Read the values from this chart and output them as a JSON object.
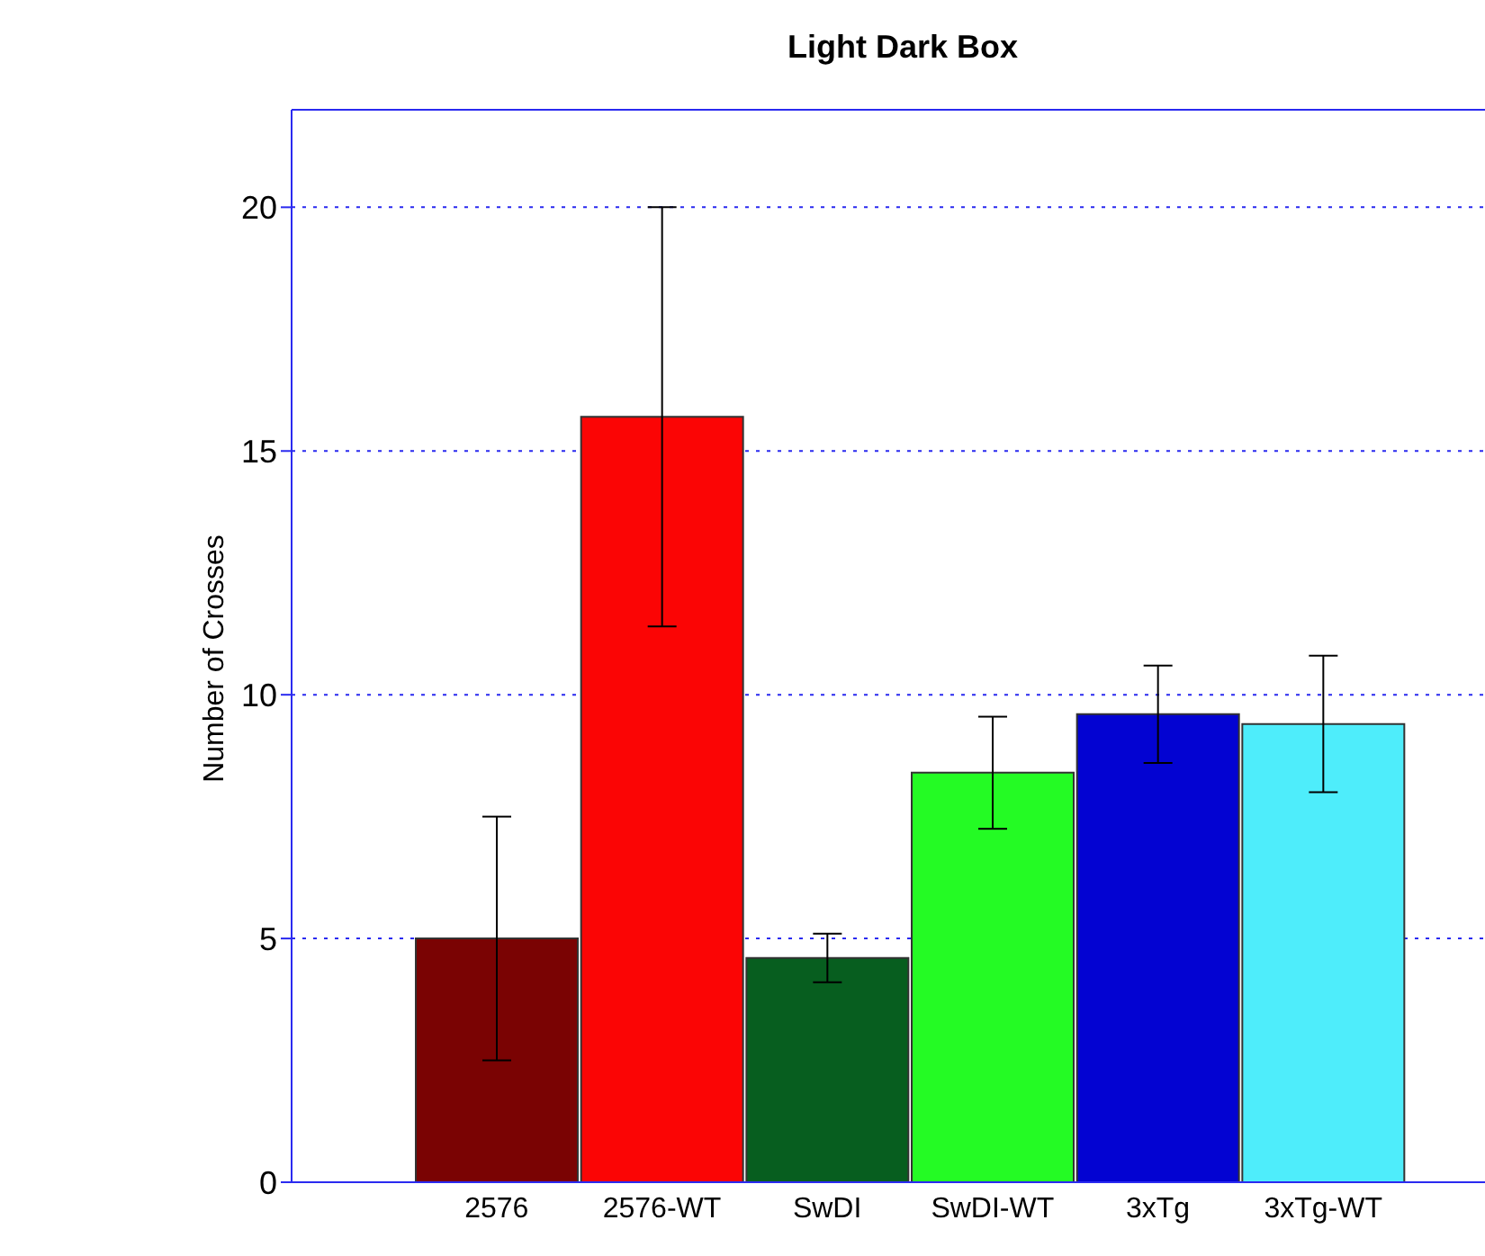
{
  "chart_data": {
    "type": "bar",
    "title": "Light Dark Box",
    "ylabel": "Number of Crosses",
    "categories": [
      "2576",
      "2576-WT",
      "SwDI",
      "SwDI-WT",
      "3xTg",
      "3xTg-WT"
    ],
    "values": [
      5.0,
      15.7,
      4.6,
      8.4,
      9.6,
      9.4
    ],
    "colors": [
      "#7a0303",
      "#fb0505",
      "#075e1f",
      "#24fb24",
      "#0303d2",
      "#4eedfb"
    ],
    "errors": [
      [
        2.5,
        7.5
      ],
      [
        11.4,
        20
      ],
      [
        4.1,
        5.1
      ],
      [
        7.25,
        9.55
      ],
      [
        8.6,
        10.6
      ],
      [
        8.0,
        10.8
      ]
    ],
    "ylim": [
      0,
      22
    ],
    "yticks": [
      0,
      5,
      10,
      15,
      20
    ],
    "grid": "y"
  }
}
